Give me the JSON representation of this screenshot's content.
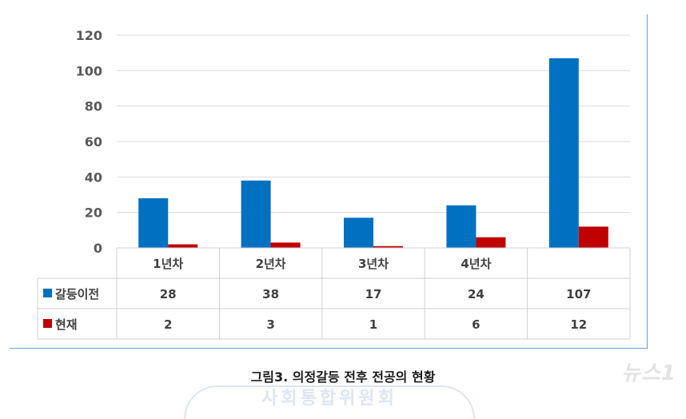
{
  "chart_data": {
    "type": "bar",
    "title": "",
    "categories": [
      "1년차",
      "2년차",
      "3년차",
      "4년차",
      ""
    ],
    "series": [
      {
        "name": "갈등이전",
        "color": "#0070c0",
        "values": [
          28,
          38,
          17,
          24,
          107
        ]
      },
      {
        "name": "현재",
        "color": "#c00000",
        "values": [
          2,
          3,
          1,
          6,
          12
        ]
      }
    ],
    "ylim": [
      0,
      120
    ],
    "yticks": [
      "0",
      "20",
      "40",
      "60",
      "80",
      "100",
      "120"
    ],
    "grid": true,
    "legend": "data-table"
  },
  "caption": "그림3. 의정갈등 전후 전공의 현황",
  "watermark": "사회통합위원회",
  "logo": "뉴스1"
}
